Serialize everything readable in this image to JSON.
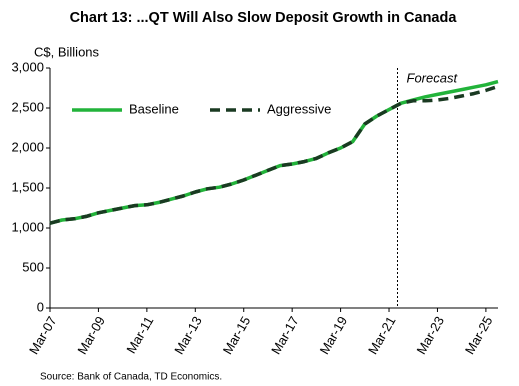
{
  "chart_data": {
    "type": "line",
    "title": "Chart 13: ...QT Will Also  Slow Deposit Growth in Canada",
    "y_label": "C$, Billions",
    "annotation": "Forecast",
    "source": "Source:  Bank of Canada,  TD Economics.",
    "categories": [
      "Mar-07",
      null,
      null,
      null,
      "Mar-09",
      null,
      null,
      null,
      "Mar-11",
      null,
      null,
      null,
      "Mar-13",
      null,
      null,
      null,
      "Mar-15",
      null,
      null,
      null,
      "Mar-17",
      null,
      null,
      null,
      "Mar-19",
      null,
      null,
      null,
      "Mar-21",
      null,
      null,
      null,
      "Mar-23",
      null,
      null,
      null,
      "Mar-25",
      null
    ],
    "series": [
      {
        "name": "Baseline",
        "color": "#22b33a",
        "dash": false,
        "values": [
          1060,
          1100,
          1115,
          1145,
          1190,
          1220,
          1250,
          1280,
          1290,
          1320,
          1360,
          1400,
          1450,
          1490,
          1510,
          1550,
          1600,
          1660,
          1720,
          1780,
          1800,
          1830,
          1870,
          1940,
          2000,
          2080,
          2300,
          2400,
          2480,
          2560,
          2600,
          2640,
          2670,
          2700,
          2730,
          2760,
          2790,
          2830
        ]
      },
      {
        "name": "Aggressive",
        "color": "#1a3a22",
        "dash": true,
        "values": [
          1060,
          1100,
          1115,
          1145,
          1190,
          1220,
          1250,
          1280,
          1290,
          1320,
          1360,
          1400,
          1450,
          1490,
          1510,
          1550,
          1600,
          1660,
          1720,
          1780,
          1800,
          1830,
          1870,
          1940,
          2000,
          2080,
          2300,
          2400,
          2480,
          2560,
          2590,
          2590,
          2600,
          2620,
          2650,
          2680,
          2720,
          2770
        ]
      }
    ],
    "ylim": [
      0,
      3000
    ],
    "yticks": [
      0,
      500,
      {
        "value": 1000,
        "label": "1,000"
      },
      {
        "value": 1500,
        "label": "1,500"
      },
      {
        "value": 2000,
        "label": "2,000"
      },
      {
        "value": 2500,
        "label": "2,500"
      },
      {
        "value": 3000,
        "label": "3,000"
      }
    ],
    "grid": false
  }
}
